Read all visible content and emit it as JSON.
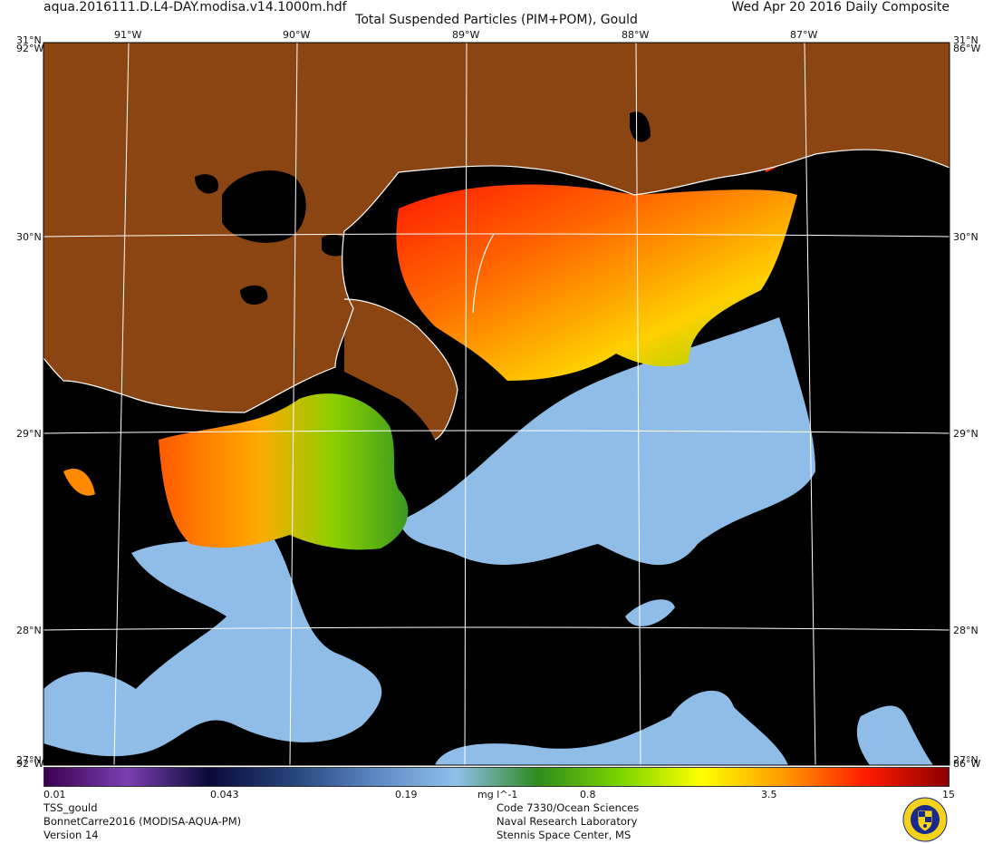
{
  "header": {
    "filename": "aqua.2016111.D.L4-DAY.modisa.v14.1000m.hdf",
    "product_title": "Total Suspended Particles (PIM+POM), Gould",
    "date_label": "Wed Apr 20 2016 Daily Composite"
  },
  "map": {
    "top_lon_labels": [
      "91°W",
      "90°W",
      "89°W",
      "88°W",
      "87°W"
    ],
    "left_lat_labels": [
      "31°N",
      "30°N",
      "29°N",
      "28°N"
    ],
    "right_lat_labels": [
      "31°N",
      "30°N",
      "29°N",
      "28°N"
    ],
    "corner_labels": {
      "top_left_lon": "92°W",
      "top_right_lon": "86°W",
      "bottom_left_lat": "27°N",
      "bottom_left_lon": "92°W",
      "bottom_right_lat": "27°N",
      "bottom_right_lon": "86°W"
    },
    "colors": {
      "land": "#8B4513",
      "no_data": "#000000",
      "coastline": "#ffffff",
      "grid": "#ffffff"
    }
  },
  "colorbar": {
    "tick_labels": [
      "0.01",
      "0.043",
      "0.19",
      "mg l^-1",
      "0.8",
      "3.5",
      "15"
    ],
    "scale": "log",
    "range": [
      0.01,
      15
    ],
    "colors": [
      "#3a0050",
      "#7b3fb0",
      "#0a0a3a",
      "#24427a",
      "#5b86c0",
      "#8fc0ec",
      "#2e8b1e",
      "#7ad400",
      "#ffff00",
      "#ff9900",
      "#ff1a00",
      "#8a0000"
    ]
  },
  "footer": {
    "left_lines": [
      "TSS_gould",
      "BonnetCarre2016 (MODISA-AQUA-PM)",
      "Version 14"
    ],
    "center_lines": [
      "Code 7330/Ocean Sciences",
      "Naval Research Laboratory",
      "Stennis Space Center, MS"
    ],
    "logo": "NRL-seal-icon"
  }
}
